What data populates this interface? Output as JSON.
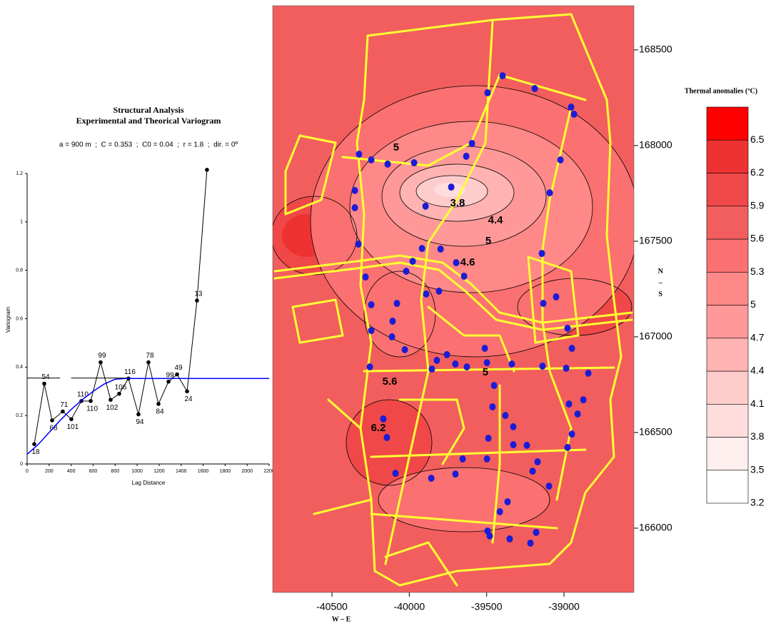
{
  "chart_data": [
    {
      "type": "line",
      "title": "Structural Analysis",
      "subtitle": "Experimental and Theorical Variogram",
      "annotation": "a = 900 m  ;  C = 0.353  ;  C0 = 0.04  ;  r = 1.8  ;  dir. = 0º",
      "xlabel": "Lag Distance",
      "ylabel": "Variogram",
      "xlim": [
        0,
        2200
      ],
      "xticks": [
        0,
        200,
        400,
        600,
        800,
        1000,
        1200,
        1400,
        1600,
        1800,
        2000,
        2200
      ],
      "ylim": [
        0,
        1.2
      ],
      "yticks": [
        0,
        0.2,
        0.4,
        0.6,
        0.8,
        1,
        1.2
      ],
      "series": [
        {
          "color": "#000000",
          "markers": true,
          "x": [
            65,
            156,
            227,
            324,
            402,
            493,
            578,
            668,
            759,
            837,
            921,
            1012,
            1103,
            1194,
            1285,
            1363,
            1454,
            1544,
            1635
          ],
          "values": [
            0.082,
            0.332,
            0.18,
            0.217,
            0.185,
            0.26,
            0.26,
            0.42,
            0.265,
            0.29,
            0.353,
            0.205,
            0.42,
            0.248,
            0.34,
            0.37,
            0.3,
            0.675,
            1.215
          ],
          "point_labels": [
            18,
            54,
            68,
            71,
            101,
            110,
            110,
            99,
            102,
            106,
            116,
            94,
            78,
            84,
            99,
            49,
            24,
            13,
            null
          ]
        },
        {
          "color": "#0000ff",
          "markers": false,
          "x": [
            0,
            100,
            200,
            300,
            400,
            500,
            600,
            700,
            800,
            900,
            2200
          ],
          "values": [
            0.04,
            0.08,
            0.13,
            0.18,
            0.225,
            0.265,
            0.3,
            0.33,
            0.35,
            0.353,
            0.353
          ]
        },
        {
          "color": "#000000",
          "markers": false,
          "x": [
            0,
            300,
            350,
            400,
            900
          ],
          "values": [
            0.355,
            0.355,
            null,
            0.355,
            0.355
          ]
        }
      ]
    },
    {
      "type": "contour",
      "xlabel": "W – E",
      "ylabel": "N – S",
      "xlim": [
        -40883,
        -38548
      ],
      "xticks": [
        -40500,
        -40000,
        -39500,
        -39000
      ],
      "ylim": [
        165664,
        168731
      ],
      "yticks": [
        166000,
        166500,
        167000,
        167500,
        168000,
        168500
      ],
      "points": {
        "color": "#1c1cd6",
        "x": [
          -39397,
          -39494,
          -39189,
          -38954,
          -38935,
          -39595,
          -39632,
          -40325,
          -40246,
          -40140,
          -39969,
          -39023,
          -39729,
          -39092,
          -40352,
          -39895,
          -40352,
          -40329,
          -39918,
          -39798,
          -39978,
          -39697,
          -39143,
          -40020,
          -39646,
          -40283,
          -39891,
          -39808,
          -40246,
          -40080,
          -40108,
          -39134,
          -39051,
          -40246,
          -40112,
          -38977,
          -40029,
          -39822,
          -39702,
          -39757,
          -39512,
          -39498,
          -39854,
          -40255,
          -39628,
          -39337,
          -39139,
          -38986,
          -38843,
          -38949,
          -39452,
          -38875,
          -38968,
          -38912,
          -39462,
          -39379,
          -40168,
          -39328,
          -38949,
          -40145,
          -39489,
          -39328,
          -39240,
          -38977,
          -39655,
          -39498,
          -39171,
          -39203,
          -40089,
          -39858,
          -39702,
          -39097,
          -39365,
          -39415,
          -39494,
          -39480,
          -39351,
          -39217,
          -39180
        ],
        "y": [
          168365,
          168276,
          168298,
          168201,
          168164,
          168011,
          167944,
          167955,
          167925,
          167903,
          167910,
          167925,
          167783,
          167753,
          167765,
          167683,
          167675,
          167485,
          167462,
          167459,
          167395,
          167388,
          167436,
          167343,
          167317,
          167313,
          167224,
          167239,
          167168,
          167175,
          167082,
          167175,
          167209,
          167033,
          167000,
          167045,
          166933,
          166877,
          166858,
          166907,
          166940,
          166865,
          166832,
          166843,
          166843,
          166858,
          166847,
          166836,
          166810,
          166940,
          166746,
          166671,
          166649,
          166597,
          166634,
          166589,
          166571,
          166530,
          166492,
          166474,
          166470,
          166436,
          166433,
          166422,
          166362,
          166362,
          166347,
          166298,
          166287,
          166261,
          166283,
          166220,
          166138,
          166086,
          165985,
          165959,
          165944,
          165922,
          165978
        ]
      },
      "annotations": [
        {
          "text": "3.8",
          "x": -39688,
          "y": 167697
        },
        {
          "text": "4.4",
          "x": -39443,
          "y": 167608
        },
        {
          "text": "5",
          "x": -39489,
          "y": 167500
        },
        {
          "text": "4.6",
          "x": -39623,
          "y": 167388
        },
        {
          "text": "5",
          "x": -39508,
          "y": 166813
        },
        {
          "text": "5.6",
          "x": -40126,
          "y": 166765
        },
        {
          "text": "6.2",
          "x": -40200,
          "y": 166522
        },
        {
          "text": "5",
          "x": -40085,
          "y": 167989
        }
      ],
      "colorbar": {
        "title": "Thermal anomalies (ºC)",
        "levels": [
          3.2,
          3.5,
          3.8,
          4.1,
          4.4,
          4.7,
          5,
          5.3,
          5.6,
          5.9,
          6.2,
          6.5
        ],
        "lim": [
          3.2,
          6.8
        ],
        "colors": [
          "#ffffff",
          "#ffeeee",
          "#ffdddd",
          "#ffcccc",
          "#ffb3b3",
          "#ff9999",
          "#ff8888",
          "#fb7070",
          "#f25e5e",
          "#f04848",
          "#ee3232",
          "#ff0000"
        ]
      }
    }
  ]
}
